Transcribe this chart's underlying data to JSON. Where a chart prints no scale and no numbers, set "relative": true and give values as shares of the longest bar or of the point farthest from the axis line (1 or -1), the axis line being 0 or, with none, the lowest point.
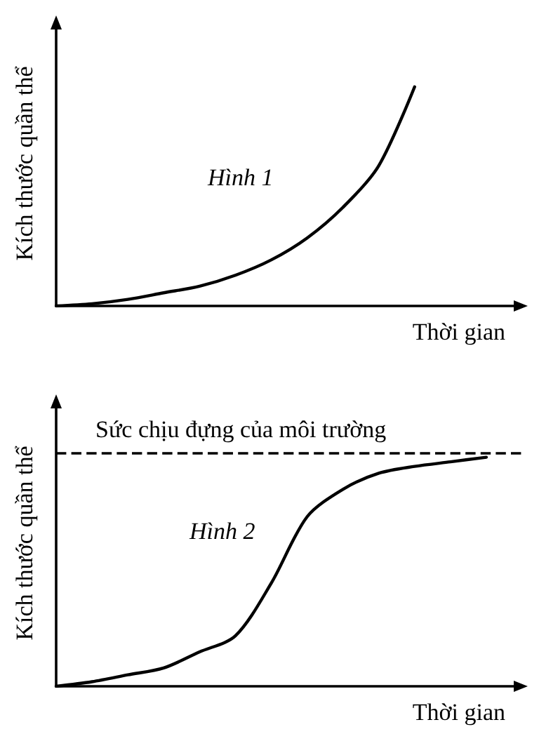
{
  "chart_data": [
    {
      "type": "line",
      "relative": true,
      "ylabel": "Kích thước quần thể",
      "xlabel": "Thời gian",
      "annotations": [
        "Hình 1"
      ],
      "categories": [
        null,
        null,
        null,
        null,
        null,
        null,
        null,
        null,
        null,
        null,
        null,
        null,
        null,
        null
      ],
      "series": [
        {
          "color": "#000000",
          "values": [
            0,
            0.01,
            0.03,
            0.06,
            0.09,
            0.14,
            0.21,
            0.31,
            0.45,
            0.64,
            1,
            null,
            null,
            null
          ]
        }
      ]
    },
    {
      "type": "line",
      "relative": true,
      "ylabel": "Kích thước quần thể",
      "xlabel": "Thời gian",
      "annotations": [
        "Hình 2"
      ],
      "categories": [
        null,
        null,
        null,
        null,
        null,
        null,
        null,
        null,
        null,
        null,
        null,
        null,
        null,
        null
      ],
      "series": [
        {
          "color": "#000000",
          "values": [
            0,
            0.02,
            0.05,
            0.08,
            0.15,
            0.22,
            0.45,
            0.74,
            0.86,
            0.93,
            0.96,
            0.98,
            1,
            null
          ]
        }
      ],
      "ref_lines": [
        {
          "axis": "y",
          "value": 1.02,
          "label": "Sức chịu đựng của môi trường",
          "line_style": "dashed"
        }
      ]
    }
  ]
}
